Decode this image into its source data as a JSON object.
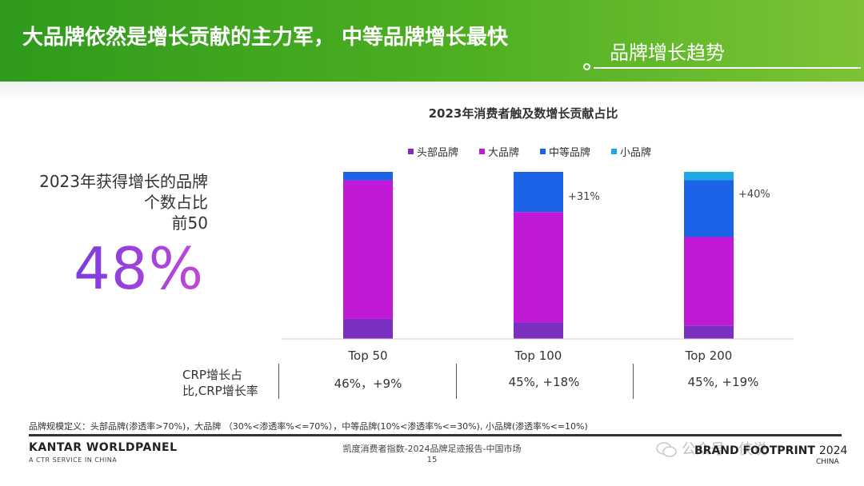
{
  "header": {
    "title": "大品牌依然是增长贡献的主力军， 中等品牌增长最快",
    "subtitle": "品牌增长趋势"
  },
  "left_panel": {
    "line1": "2023年获得增长的品牌",
    "line2": "个数占比",
    "line3": "前50",
    "big_value": "48%"
  },
  "colors": {
    "header_green": "#4eb021",
    "head_brand": "#7b2fbe",
    "big_brand": "#c219d6",
    "mid_brand": "#1c63e8",
    "small_brand": "#1ea9e6"
  },
  "chart_data": {
    "type": "bar",
    "stacked": true,
    "title": "2023年消费者触及数增长贡献占比",
    "categories": [
      "Top 50",
      "Top 100",
      "Top 200"
    ],
    "ylim": [
      0,
      100
    ],
    "legend_position": "top",
    "series": [
      {
        "name": "头部品牌",
        "color": "#7b2fbe",
        "values": [
          12,
          10,
          8
        ]
      },
      {
        "name": "大品牌",
        "color": "#c219d6",
        "values": [
          83,
          66,
          53
        ]
      },
      {
        "name": "中等品牌",
        "color": "#1c63e8",
        "values": [
          5,
          24,
          34
        ]
      },
      {
        "name": "小品牌",
        "color": "#1ea9e6",
        "values": [
          0,
          0,
          5
        ]
      }
    ],
    "annotations": [
      "",
      "+31%",
      "+40%"
    ]
  },
  "stats": {
    "label": "CRP增长占比,CRP增长率",
    "values": [
      "46%，+9%",
      "45%, +18%",
      "45%, +19%"
    ]
  },
  "footnote": "品牌规模定义：头部品牌(渗透率>70%)，大品牌 （30%<渗透率%<=70%），中等品牌(10%<渗透率%<=30%), 小品牌(渗透率%<=10%)",
  "footer": {
    "brand": "KANTAR WORLDPANEL",
    "brand_sub": "A CTR SERVICE IN CHINA",
    "center": "凯度消费者指数-2024品牌足迹报告-中国市场",
    "page": "15",
    "watermark": "公众号 · 侠说",
    "bf_label": "BRAND FOOTPRINT",
    "bf_year": "2024",
    "bf_sub": "CHINA"
  }
}
